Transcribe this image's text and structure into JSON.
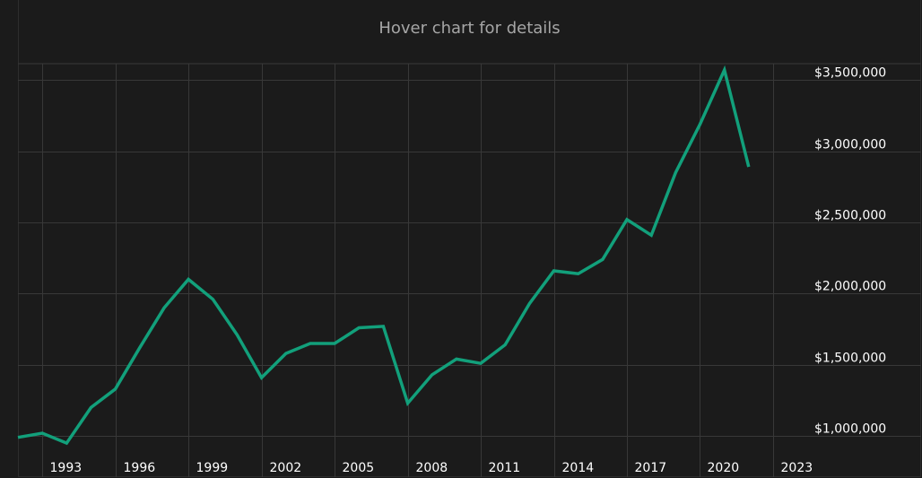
{
  "hover_hint": "Hover chart for details",
  "chart_data": {
    "type": "line",
    "title": "",
    "xlabel": "",
    "ylabel": "",
    "x_tick_labels": [
      "1993",
      "1996",
      "1999",
      "2002",
      "2005",
      "2008",
      "2011",
      "2014",
      "2017",
      "2020",
      "2023"
    ],
    "y_tick_labels": [
      "$1,000,000",
      "$1,500,000",
      "$2,000,000",
      "$2,500,000",
      "$3,000,000",
      "$3,500,000"
    ],
    "y_ticks": [
      1000000,
      1500000,
      2000000,
      2500000,
      3000000,
      3500000
    ],
    "xlim": [
      1992,
      2024.4
    ],
    "ylim": [
      875000,
      3615000
    ],
    "grid": true,
    "y_axis_position": "right",
    "series": [
      {
        "color": "#12a07b",
        "x": [
          1992,
          1993,
          1994,
          1995,
          1996,
          1997,
          1998,
          1999,
          2000,
          2001,
          2002,
          2003,
          2004,
          2005,
          2006,
          2007,
          2008,
          2009,
          2010,
          2011,
          2012,
          2013,
          2014,
          2015,
          2016,
          2017,
          2018,
          2019,
          2020,
          2021,
          2022
        ],
        "y": [
          990000,
          1020000,
          950000,
          1200000,
          1330000,
          1620000,
          1900000,
          2100000,
          1960000,
          1710000,
          1410000,
          1580000,
          1650000,
          1650000,
          1760000,
          1770000,
          1230000,
          1430000,
          1540000,
          1510000,
          1640000,
          1930000,
          2160000,
          2140000,
          2240000,
          2520000,
          2410000,
          2850000,
          3190000,
          3570000,
          2890000
        ]
      }
    ]
  }
}
